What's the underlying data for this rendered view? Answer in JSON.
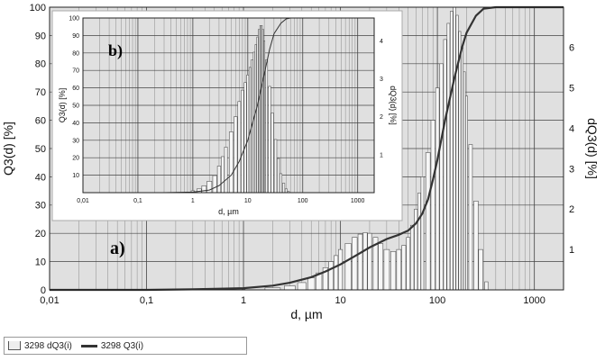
{
  "chart_data": [
    {
      "panel": "a)",
      "type": "histogram+line",
      "xlabel": "d, µm",
      "ylabel_left": "Q3(d) [%]",
      "ylabel_right": "dQ3(d) [%]",
      "x_scale": "log",
      "xlim": [
        0.01,
        2000
      ],
      "ylim_left": [
        0,
        100
      ],
      "ylim_right": [
        0,
        7
      ],
      "x_ticks": [
        "0,01",
        "0,1",
        "1",
        "10",
        "100",
        "1000"
      ],
      "y_ticks_left": [
        "0",
        "10",
        "20",
        "30",
        "40",
        "50",
        "60",
        "70",
        "80",
        "90",
        "100"
      ],
      "y_ticks_right": [
        "1",
        "2",
        "3",
        "4",
        "5",
        "6"
      ],
      "grid": true,
      "series": [
        {
          "name": "3298 dQ3(i)",
          "kind": "bar",
          "x": [
            1,
            2,
            3,
            4,
            5,
            6,
            7,
            8,
            9,
            10,
            12,
            14,
            16,
            18,
            20,
            23,
            26,
            30,
            35,
            40,
            45,
            50,
            55,
            60,
            65,
            70,
            80,
            90,
            100,
            110,
            120,
            130,
            140,
            150,
            160,
            170,
            180,
            190,
            200,
            220,
            250,
            280,
            320
          ],
          "y": [
            0.02,
            0.05,
            0.1,
            0.18,
            0.3,
            0.42,
            0.55,
            0.7,
            0.85,
            1.0,
            1.15,
            1.3,
            1.38,
            1.42,
            1.4,
            1.3,
            1.15,
            1.0,
            0.95,
            1.0,
            1.1,
            1.3,
            1.6,
            2.0,
            2.4,
            2.8,
            3.4,
            4.2,
            5.0,
            5.6,
            6.2,
            6.6,
            6.9,
            7.0,
            6.8,
            6.4,
            6.0,
            5.4,
            4.8,
            3.6,
            2.2,
            1.0,
            0.2
          ]
        },
        {
          "name": "3298 Q3(i)",
          "kind": "line",
          "x": [
            0.01,
            0.1,
            0.3,
            1,
            2,
            3,
            5,
            7,
            10,
            15,
            20,
            30,
            40,
            50,
            60,
            70,
            80,
            90,
            100,
            120,
            150,
            180,
            200,
            250,
            300,
            400,
            2000
          ],
          "y": [
            0,
            0,
            0.2,
            0.6,
            1.5,
            2.5,
            4.5,
            6.5,
            9,
            12.5,
            15,
            18,
            19.5,
            21,
            23.5,
            27,
            32,
            39,
            46,
            60,
            75,
            86,
            91,
            97,
            99.5,
            100,
            100
          ]
        }
      ]
    },
    {
      "panel": "b)",
      "type": "histogram+line",
      "xlabel": "d, µm",
      "ylabel_left": "Q3(d) [%]",
      "ylabel_right": "dQ3(d) [%]",
      "x_scale": "log",
      "xlim": [
        0.01,
        2000
      ],
      "ylim_left": [
        0,
        100
      ],
      "ylim_right": [
        0,
        4.6
      ],
      "x_ticks": [
        "0,01",
        "0,1",
        "1",
        "10",
        "100",
        "1000"
      ],
      "y_ticks_left": [
        "10",
        "20",
        "30",
        "40",
        "50",
        "60",
        "70",
        "80",
        "90",
        "100"
      ],
      "y_ticks_right": [
        "1",
        "2",
        "3",
        "4"
      ],
      "grid": true,
      "series": [
        {
          "name": "dQ3",
          "kind": "bar",
          "x": [
            1,
            1.3,
            1.6,
            2,
            2.5,
            3,
            3.5,
            4,
            5,
            6,
            7,
            8,
            9,
            10,
            11,
            12,
            13,
            14,
            15,
            16,
            17,
            18,
            19,
            20,
            22,
            25,
            28,
            32,
            36,
            40,
            45,
            50,
            55
          ],
          "y": [
            0.05,
            0.1,
            0.18,
            0.3,
            0.45,
            0.7,
            0.95,
            1.2,
            1.6,
            2.0,
            2.4,
            2.7,
            2.9,
            3.1,
            3.3,
            3.5,
            3.7,
            3.9,
            4.1,
            4.3,
            4.4,
            4.4,
            4.3,
            4.0,
            3.5,
            2.8,
            2.1,
            1.4,
            0.9,
            0.5,
            0.25,
            0.1,
            0.03
          ]
        },
        {
          "name": "Q3",
          "kind": "line",
          "x": [
            0.01,
            0.3,
            1,
            2,
            3,
            5,
            7,
            10,
            15,
            20,
            25,
            30,
            40,
            50,
            60,
            100,
            2000
          ],
          "y": [
            0,
            0,
            0.3,
            1.5,
            4,
            10,
            18,
            30,
            50,
            68,
            82,
            91,
            97,
            99.5,
            100,
            100,
            100
          ]
        }
      ]
    }
  ],
  "legend": [
    {
      "icon": "bar-swatch-icon",
      "label": "3298 dQ3(i)"
    },
    {
      "icon": "line-swatch-icon",
      "label": "3298 Q3(i)"
    }
  ]
}
